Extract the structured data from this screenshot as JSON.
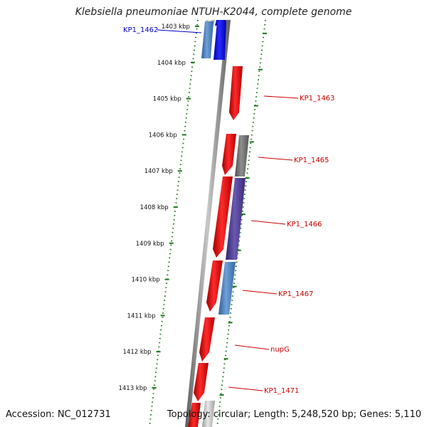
{
  "header": {
    "title": "Klebsiella pneumoniae NTUH-K2044, complete genome"
  },
  "footer": {
    "accession": "Accession: NC_012731",
    "summary": "Topology: circular; Length: 5,248,520 bp; Genes: 5,110"
  },
  "ruler": {
    "ticks": [
      "1403 kbp",
      "1404 kbp",
      "1405 kbp",
      "1406 kbp",
      "1407 kbp",
      "1408 kbp",
      "1409 kbp",
      "1410 kbp",
      "1411 kbp",
      "1412 kbp",
      "1413 kbp"
    ]
  },
  "genes": [
    {
      "label": "KP1_1462",
      "color": "#0000cc"
    },
    {
      "label": "KP1_1463",
      "color": "#cc0000"
    },
    {
      "label": "KP1_1465",
      "color": "#cc0000"
    },
    {
      "label": "KP1_1466",
      "color": "#cc0000"
    },
    {
      "label": "KP1_1467",
      "color": "#cc0000"
    },
    {
      "label": "nupG",
      "color": "#cc0000"
    },
    {
      "label": "KP1_1471",
      "color": "#cc0000"
    }
  ],
  "colors": {
    "forward_strand": "#ff0000",
    "reverse_strand": "#0000ff",
    "steel_blue": "#4a7fbf",
    "purple": "#4b3a8c",
    "gray": "#707070",
    "backbone": "#808080",
    "tick_green": "#1a7a1a"
  }
}
